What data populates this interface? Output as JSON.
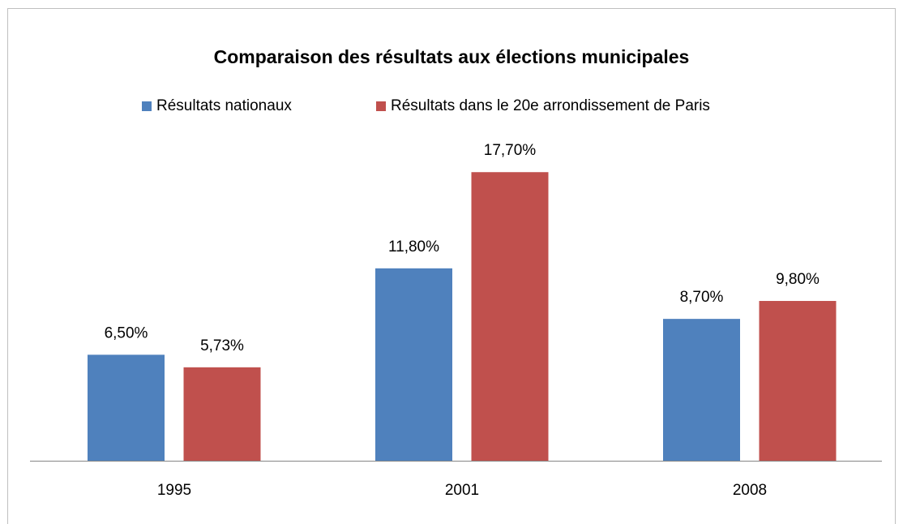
{
  "chart_data": {
    "type": "bar",
    "title": "Comparaison des résultats aux élections municipales",
    "categories": [
      "1995",
      "2001",
      "2008"
    ],
    "series": [
      {
        "name": "Résultats nationaux",
        "color": "#4f81bd",
        "values": [
          6.5,
          11.8,
          8.7
        ],
        "value_labels": [
          "6,50%",
          "11,80%",
          "8,70%"
        ]
      },
      {
        "name": "Résultats dans le 20e arrondissement de Paris",
        "color": "#c0504d",
        "values": [
          5.73,
          17.7,
          9.8
        ],
        "value_labels": [
          "5,73%",
          "17,70%",
          "9,80%"
        ]
      }
    ],
    "ylim": [
      0,
      20
    ],
    "legend": "top"
  }
}
